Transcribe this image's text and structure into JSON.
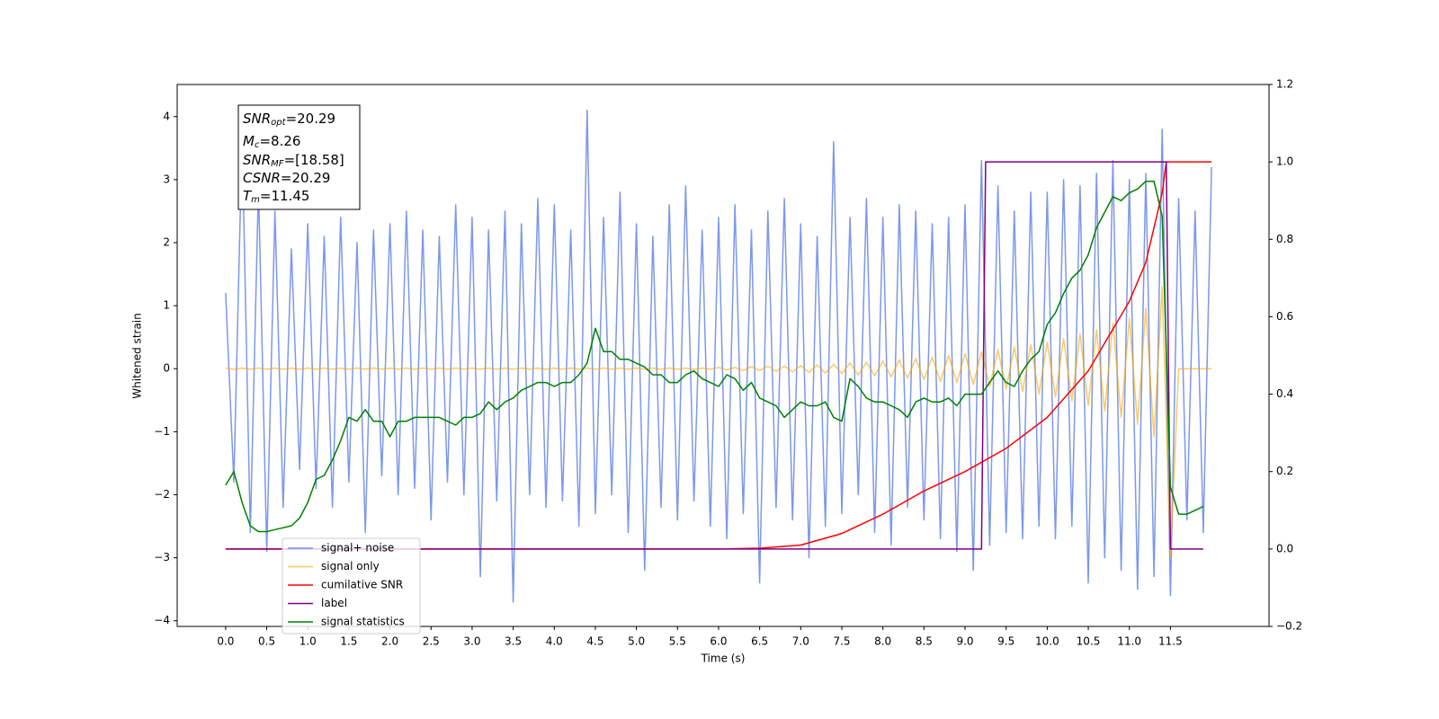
{
  "chart_data": {
    "type": "line",
    "x_label": "Time (s)",
    "y_label": "Whitened strain",
    "xlim": [
      -0.59,
      12.7
    ],
    "ylim": [
      -4.09,
      4.51
    ],
    "y2lim": [
      -0.2,
      1.2
    ],
    "xticks": [
      {
        "value": 0,
        "label": "0.0"
      },
      {
        "value": 0.5,
        "label": "0.5"
      },
      {
        "value": 1,
        "label": "1.0"
      },
      {
        "value": 1.5,
        "label": "1.5"
      },
      {
        "value": 2,
        "label": "2.0"
      },
      {
        "value": 2.5,
        "label": "2.5"
      },
      {
        "value": 3,
        "label": "3.0"
      },
      {
        "value": 3.5,
        "label": "3.5"
      },
      {
        "value": 4,
        "label": "4.0"
      },
      {
        "value": 4.5,
        "label": "4.5"
      },
      {
        "value": 5,
        "label": "5.0"
      },
      {
        "value": 5.5,
        "label": "5.5"
      },
      {
        "value": 6,
        "label": "6.0"
      },
      {
        "value": 6.5,
        "label": "6.5"
      },
      {
        "value": 7,
        "label": "7.0"
      },
      {
        "value": 7.5,
        "label": "7.5"
      },
      {
        "value": 8,
        "label": "8.0"
      },
      {
        "value": 8.5,
        "label": "8.5"
      },
      {
        "value": 9,
        "label": "9.0"
      },
      {
        "value": 9.5,
        "label": "9.5"
      },
      {
        "value": 10,
        "label": "10.0"
      },
      {
        "value": 10.5,
        "label": "10.5"
      },
      {
        "value": 11,
        "label": "11.0"
      },
      {
        "value": 11.5,
        "label": "11.5"
      }
    ],
    "yticks": [
      {
        "value": -4,
        "label": "−4"
      },
      {
        "value": -3,
        "label": "−3"
      },
      {
        "value": -2,
        "label": "−2"
      },
      {
        "value": -1,
        "label": "−1"
      },
      0,
      1,
      2,
      3,
      4
    ],
    "y2ticks": [
      {
        "value": -0.2,
        "label": "−0.2"
      },
      {
        "value": 0,
        "label": "0.0"
      },
      0.2,
      0.4,
      0.6,
      0.8,
      {
        "value": 1,
        "label": "1.0"
      },
      1.2
    ],
    "annotation": [
      [
        "SNR",
        "opt",
        "=20.29"
      ],
      [
        "M",
        "c",
        "=8.26"
      ],
      [
        "SNR",
        "MF",
        "=[18.58]"
      ],
      [
        "CSNR",
        "",
        "=20.29"
      ],
      [
        "T",
        "m",
        "=11.45"
      ]
    ],
    "x": [
      0,
      0.1,
      0.2,
      0.3,
      0.4,
      0.5,
      0.6,
      0.7,
      0.8,
      0.9,
      1,
      1.1,
      1.2,
      1.3,
      1.4,
      1.5,
      1.6,
      1.7,
      1.8,
      1.9,
      2,
      2.1,
      2.2,
      2.3,
      2.4,
      2.5,
      2.6,
      2.7,
      2.8,
      2.9,
      3,
      3.1,
      3.2,
      3.3,
      3.4,
      3.5,
      3.6,
      3.7,
      3.8,
      3.9,
      4,
      4.1,
      4.2,
      4.3,
      4.4,
      4.5,
      4.6,
      4.7,
      4.8,
      4.9,
      5,
      5.1,
      5.2,
      5.3,
      5.4,
      5.5,
      5.6,
      5.7,
      5.8,
      5.9,
      6,
      6.1,
      6.2,
      6.3,
      6.4,
      6.5,
      6.6,
      6.7,
      6.8,
      6.9,
      7,
      7.1,
      7.2,
      7.3,
      7.4,
      7.5,
      7.6,
      7.7,
      7.8,
      7.9,
      8,
      8.1,
      8.2,
      8.3,
      8.4,
      8.5,
      8.6,
      8.7,
      8.8,
      8.9,
      9,
      9.1,
      9.2,
      9.3,
      9.4,
      9.5,
      9.6,
      9.7,
      9.8,
      9.9,
      10,
      10.1,
      10.2,
      10.3,
      10.4,
      10.5,
      10.6,
      10.7,
      10.8,
      10.9,
      11,
      11.1,
      11.2,
      11.3,
      11.4,
      11.5,
      11.6,
      11.7,
      11.8,
      11.9,
      12
    ],
    "series": [
      {
        "name": "signal+ noise",
        "color": "#7592e8",
        "values": [
          1.2,
          -1.8,
          3.7,
          -2.6,
          2.9,
          -2.9,
          2.5,
          -2.2,
          1.9,
          -1.6,
          2.3,
          -1.9,
          2.1,
          -2.2,
          2.4,
          -1.8,
          2.0,
          -2.6,
          2.2,
          -1.7,
          2.3,
          -2.0,
          2.5,
          -1.9,
          2.2,
          -2.4,
          2.1,
          -1.8,
          2.6,
          -2.0,
          2.4,
          -3.3,
          2.2,
          -2.1,
          2.5,
          -3.7,
          2.3,
          -2.0,
          2.7,
          -2.2,
          2.6,
          -2.1,
          2.2,
          -2.5,
          4.1,
          -2.3,
          2.4,
          -2.0,
          2.8,
          -2.6,
          2.3,
          -3.2,
          2.1,
          -2.2,
          2.6,
          -2.4,
          2.9,
          -2.1,
          2.2,
          -2.5,
          2.4,
          -2.7,
          2.6,
          -2.3,
          2.2,
          -3.4,
          2.5,
          -2.2,
          2.7,
          -2.4,
          2.3,
          -3.0,
          2.1,
          -2.5,
          3.6,
          -2.3,
          2.4,
          -2.0,
          2.7,
          -2.6,
          2.4,
          -2.8,
          2.6,
          -2.2,
          2.5,
          -2.4,
          2.3,
          -2.7,
          2.4,
          -2.9,
          2.6,
          -3.2,
          3.3,
          -2.8,
          2.9,
          -2.6,
          2.5,
          -2.7,
          2.8,
          -2.5,
          2.8,
          -2.7,
          3.0,
          -2.5,
          2.9,
          -3.4,
          3.1,
          -3.0,
          3.3,
          -3.2,
          3.0,
          -3.5,
          3.1,
          -3.3,
          3.8,
          -3.6,
          2.7,
          -2.4,
          2.5,
          -2.6,
          3.2
        ]
      },
      {
        "name": "signal only",
        "color": "#ffa500",
        "values": [
          0.01,
          -0.01,
          0.01,
          -0.01,
          0.01,
          -0.01,
          0.01,
          -0.01,
          0.01,
          -0.01,
          0.01,
          -0.01,
          0.01,
          -0.01,
          0.01,
          -0.01,
          0.01,
          -0.01,
          0.01,
          -0.01,
          0.01,
          -0.01,
          0.01,
          -0.01,
          0.01,
          -0.01,
          0.01,
          -0.01,
          0.01,
          -0.01,
          0.01,
          -0.01,
          0.01,
          -0.01,
          0.01,
          -0.01,
          0.01,
          -0.01,
          0.01,
          -0.01,
          0.01,
          -0.01,
          0.01,
          -0.01,
          0.01,
          -0.01,
          0.01,
          -0.01,
          0.01,
          -0.01,
          0.01,
          -0.01,
          0.01,
          -0.01,
          0.01,
          -0.01,
          0.01,
          -0.01,
          0.01,
          -0.01,
          0.02,
          -0.02,
          0.02,
          -0.03,
          0.03,
          -0.03,
          0.04,
          -0.04,
          0.04,
          -0.05,
          0.05,
          -0.06,
          0.06,
          -0.07,
          0.07,
          -0.08,
          0.09,
          -0.1,
          0.1,
          -0.11,
          0.12,
          -0.13,
          0.14,
          -0.15,
          0.16,
          -0.17,
          0.18,
          -0.2,
          0.21,
          -0.22,
          0.24,
          -0.25,
          0.27,
          -0.28,
          0.3,
          -0.32,
          0.34,
          -0.36,
          0.38,
          -0.4,
          0.42,
          -0.45,
          0.48,
          -0.51,
          0.55,
          -0.58,
          0.62,
          -0.67,
          0.72,
          -0.77,
          0.8,
          -0.88,
          0.96,
          -1.08,
          1.3,
          -3.0,
          0,
          0,
          0,
          0,
          0
        ]
      },
      {
        "name": "cumilative SNR",
        "color": "#ff0000",
        "axis": "y2",
        "x": [
          0,
          6,
          6.5,
          7,
          7.5,
          8,
          8.5,
          9,
          9.5,
          10,
          10.5,
          11,
          11.2,
          11.4,
          11.45,
          12
        ],
        "values": [
          0,
          0,
          0.002,
          0.01,
          0.04,
          0.09,
          0.15,
          0.2,
          0.26,
          0.34,
          0.46,
          0.64,
          0.74,
          0.92,
          1.0,
          1.0
        ]
      },
      {
        "name": "label",
        "color": "#800080",
        "axis": "y2",
        "x": [
          0,
          9.2,
          9.25,
          11.45,
          11.5,
          11.9
        ],
        "values": [
          0,
          0,
          1,
          1,
          0,
          0
        ]
      },
      {
        "name": "signal statistics",
        "color": "#008000",
        "axis": "y2",
        "values": [
          0.165,
          0.2,
          0.12,
          0.06,
          0.045,
          0.045,
          0.05,
          0.055,
          0.06,
          0.08,
          0.12,
          0.18,
          0.19,
          0.23,
          0.28,
          0.34,
          0.33,
          0.36,
          0.33,
          0.33,
          0.29,
          0.33,
          0.33,
          0.34,
          0.34,
          0.34,
          0.34,
          0.33,
          0.32,
          0.34,
          0.34,
          0.35,
          0.38,
          0.36,
          0.38,
          0.39,
          0.41,
          0.42,
          0.43,
          0.43,
          0.42,
          0.43,
          0.43,
          0.45,
          0.48,
          0.57,
          0.51,
          0.51,
          0.49,
          0.49,
          0.48,
          0.47,
          0.45,
          0.45,
          0.43,
          0.43,
          0.45,
          0.46,
          0.44,
          0.43,
          0.42,
          0.45,
          0.44,
          0.41,
          0.43,
          0.39,
          0.38,
          0.37,
          0.34,
          0.36,
          0.38,
          0.37,
          0.37,
          0.38,
          0.34,
          0.33,
          0.44,
          0.42,
          0.39,
          0.38,
          0.38,
          0.37,
          0.36,
          0.34,
          0.38,
          0.39,
          0.38,
          0.38,
          0.39,
          0.37,
          0.4,
          0.4,
          0.4,
          0.43,
          0.46,
          0.43,
          0.42,
          0.46,
          0.49,
          0.51,
          0.58,
          0.61,
          0.66,
          0.7,
          0.72,
          0.76,
          0.83,
          0.87,
          0.91,
          0.9,
          0.92,
          0.93,
          0.95,
          0.95,
          0.86,
          0.16,
          0.09,
          0.09,
          0.1,
          0.11,
          null
        ]
      }
    ]
  }
}
